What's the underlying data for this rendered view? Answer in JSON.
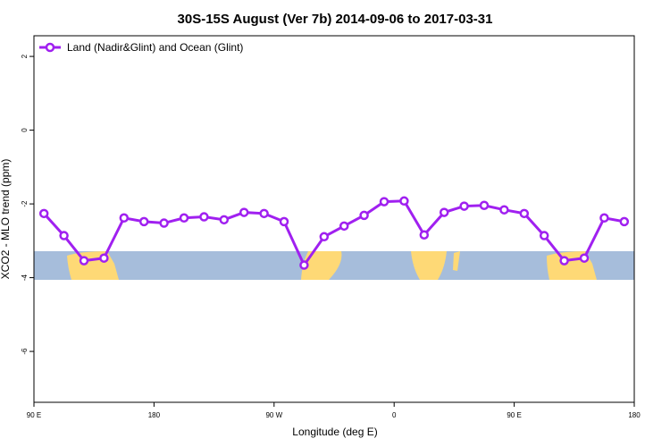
{
  "chart_data": {
    "type": "line",
    "title": "30S-15S August (Ver 7b)   2014-09-06 to 2017-03-31",
    "xlabel": "Longitude (deg E)",
    "ylabel": "XCO2 - MLO trend (ppm)",
    "x": [
      97.5,
      112.5,
      127.5,
      142.5,
      157.5,
      172.5,
      187.5,
      202.5,
      217.5,
      232.5,
      247.5,
      262.5,
      277.5,
      292.5,
      307.5,
      322.5,
      337.5,
      352.5,
      367.5,
      382.5,
      397.5,
      412.5,
      427.5,
      442.5,
      457.5,
      472.5,
      487.5,
      502.5,
      517.5,
      532.5
    ],
    "series": [
      {
        "name": "Land (Nadir&Glint) and Ocean (Glint)",
        "color": "#a020f0",
        "values": [
          -2.26,
          -2.86,
          -3.54,
          -3.47,
          -2.38,
          -2.48,
          -2.52,
          -2.38,
          -2.35,
          -2.43,
          -2.23,
          -2.26,
          -2.48,
          -3.66,
          -2.89,
          -2.6,
          -2.31,
          -1.94,
          -1.92,
          -2.84,
          -2.23,
          -2.06,
          -2.04,
          -2.16,
          -2.26,
          -2.86,
          -3.54,
          -3.47,
          -2.38,
          -2.48
        ]
      }
    ],
    "xlim": [
      90,
      540
    ],
    "xticks": [
      {
        "value": 90,
        "label": "90 E"
      },
      {
        "value": 180,
        "label": "180"
      },
      {
        "value": 270,
        "label": "90 W"
      },
      {
        "value": 360,
        "label": "0"
      },
      {
        "value": 450,
        "label": "90 E"
      },
      {
        "value": 540,
        "label": "180"
      }
    ],
    "ylim": [
      -7.38,
      2.56
    ],
    "yticks": [
      -6,
      -4,
      -2,
      0,
      2
    ],
    "legend": "top-left"
  }
}
